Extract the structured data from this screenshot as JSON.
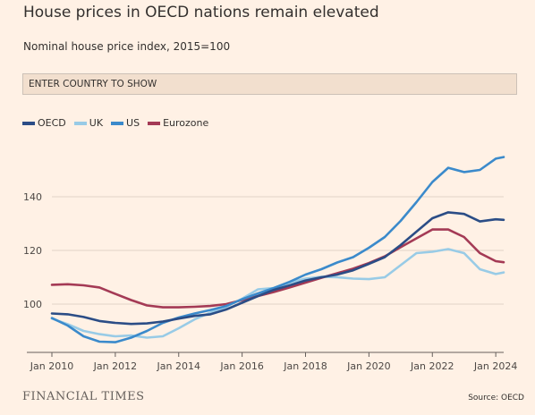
{
  "header": {
    "title": "House prices in OECD nations remain elevated",
    "subtitle": "Nominal house price index, 2015=100"
  },
  "search": {
    "placeholder": "ENTER COUNTRY TO SHOW"
  },
  "footer": {
    "logo": "FINANCIAL TIMES",
    "source": "Source: OECD"
  },
  "chart_data": {
    "type": "line",
    "title": "House prices in OECD nations remain elevated",
    "subtitle": "Nominal house price index, 2015=100",
    "xlabel": "",
    "ylabel": "",
    "x_range": [
      "2010-01",
      "2024-04"
    ],
    "ylim": [
      82,
      160
    ],
    "y_ticks": [
      100,
      120,
      140
    ],
    "x_ticks": [
      "Jan 2010",
      "Jan 2012",
      "Jan 2014",
      "Jan 2016",
      "Jan 2018",
      "Jan 2020",
      "Jan 2022",
      "Jan 2024"
    ],
    "grid": "horizontal",
    "legend_position": "top-left",
    "series": [
      {
        "name": "OECD",
        "color": "#2b4d86",
        "points": [
          [
            "2010-01",
            96.5
          ],
          [
            "2010-07",
            96.2
          ],
          [
            "2011-01",
            95.2
          ],
          [
            "2011-07",
            93.7
          ],
          [
            "2012-01",
            93.0
          ],
          [
            "2012-07",
            92.6
          ],
          [
            "2013-01",
            92.8
          ],
          [
            "2013-07",
            93.5
          ],
          [
            "2014-01",
            94.6
          ],
          [
            "2014-07",
            95.6
          ],
          [
            "2015-01",
            96.2
          ],
          [
            "2015-07",
            98.0
          ],
          [
            "2016-01",
            100.5
          ],
          [
            "2016-07",
            103.0
          ],
          [
            "2017-01",
            105.3
          ],
          [
            "2017-07",
            107.0
          ],
          [
            "2018-01",
            108.8
          ],
          [
            "2018-07",
            110.0
          ],
          [
            "2019-01",
            111.0
          ],
          [
            "2019-07",
            112.6
          ],
          [
            "2020-01",
            115.0
          ],
          [
            "2020-07",
            117.5
          ],
          [
            "2021-01",
            122.0
          ],
          [
            "2021-07",
            127.0
          ],
          [
            "2022-01",
            132.0
          ],
          [
            "2022-07",
            134.2
          ],
          [
            "2023-01",
            133.6
          ],
          [
            "2023-07",
            130.8
          ],
          [
            "2024-01",
            131.6
          ],
          [
            "2024-04",
            131.4
          ]
        ]
      },
      {
        "name": "UK",
        "color": "#98cbe6",
        "points": [
          [
            "2010-01",
            94.6
          ],
          [
            "2010-07",
            92.5
          ],
          [
            "2011-01",
            90.0
          ],
          [
            "2011-07",
            88.8
          ],
          [
            "2012-01",
            88.0
          ],
          [
            "2012-07",
            88.3
          ],
          [
            "2013-01",
            87.5
          ],
          [
            "2013-07",
            88.0
          ],
          [
            "2014-01",
            91.0
          ],
          [
            "2014-07",
            94.3
          ],
          [
            "2015-01",
            96.8
          ],
          [
            "2015-07",
            99.0
          ],
          [
            "2016-01",
            102.0
          ],
          [
            "2016-07",
            105.5
          ],
          [
            "2017-01",
            106.0
          ],
          [
            "2017-07",
            108.0
          ],
          [
            "2018-01",
            109.5
          ],
          [
            "2018-07",
            110.2
          ],
          [
            "2019-01",
            110.0
          ],
          [
            "2019-07",
            109.5
          ],
          [
            "2020-01",
            109.3
          ],
          [
            "2020-07",
            110.0
          ],
          [
            "2021-01",
            114.5
          ],
          [
            "2021-07",
            119.0
          ],
          [
            "2022-01",
            119.5
          ],
          [
            "2022-07",
            120.5
          ],
          [
            "2023-01",
            119.0
          ],
          [
            "2023-07",
            113.0
          ],
          [
            "2024-01",
            111.2
          ],
          [
            "2024-04",
            111.8
          ]
        ]
      },
      {
        "name": "US",
        "color": "#3b8acb",
        "points": [
          [
            "2010-01",
            94.8
          ],
          [
            "2010-07",
            92.0
          ],
          [
            "2011-01",
            88.0
          ],
          [
            "2011-07",
            86.0
          ],
          [
            "2012-01",
            85.8
          ],
          [
            "2012-07",
            87.5
          ],
          [
            "2013-01",
            90.0
          ],
          [
            "2013-07",
            93.0
          ],
          [
            "2014-01",
            95.0
          ],
          [
            "2014-07",
            96.5
          ],
          [
            "2015-01",
            97.8
          ],
          [
            "2015-07",
            99.3
          ],
          [
            "2016-01",
            101.8
          ],
          [
            "2016-07",
            104.0
          ],
          [
            "2017-01",
            106.0
          ],
          [
            "2017-07",
            108.3
          ],
          [
            "2018-01",
            111.0
          ],
          [
            "2018-07",
            113.0
          ],
          [
            "2019-01",
            115.5
          ],
          [
            "2019-07",
            117.5
          ],
          [
            "2020-01",
            121.0
          ],
          [
            "2020-07",
            125.0
          ],
          [
            "2021-01",
            131.0
          ],
          [
            "2021-07",
            138.0
          ],
          [
            "2022-01",
            145.5
          ],
          [
            "2022-07",
            150.8
          ],
          [
            "2023-01",
            149.2
          ],
          [
            "2023-07",
            150.0
          ],
          [
            "2024-01",
            154.2
          ],
          [
            "2024-04",
            154.8
          ]
        ]
      },
      {
        "name": "Eurozone",
        "color": "#a43a55",
        "points": [
          [
            "2010-01",
            107.2
          ],
          [
            "2010-07",
            107.4
          ],
          [
            "2011-01",
            107.0
          ],
          [
            "2011-07",
            106.2
          ],
          [
            "2012-01",
            103.8
          ],
          [
            "2012-07",
            101.5
          ],
          [
            "2013-01",
            99.5
          ],
          [
            "2013-07",
            98.8
          ],
          [
            "2014-01",
            98.8
          ],
          [
            "2014-07",
            99.0
          ],
          [
            "2015-01",
            99.3
          ],
          [
            "2015-07",
            100.0
          ],
          [
            "2016-01",
            101.5
          ],
          [
            "2016-07",
            103.0
          ],
          [
            "2017-01",
            104.5
          ],
          [
            "2017-07",
            106.2
          ],
          [
            "2018-01",
            108.0
          ],
          [
            "2018-07",
            109.8
          ],
          [
            "2019-01",
            111.5
          ],
          [
            "2019-07",
            113.2
          ],
          [
            "2020-01",
            115.3
          ],
          [
            "2020-07",
            117.8
          ],
          [
            "2021-01",
            121.2
          ],
          [
            "2021-07",
            124.5
          ],
          [
            "2022-01",
            127.8
          ],
          [
            "2022-07",
            127.8
          ],
          [
            "2023-01",
            125.0
          ],
          [
            "2023-07",
            119.0
          ],
          [
            "2024-01",
            116.0
          ],
          [
            "2024-04",
            115.6
          ]
        ]
      }
    ]
  }
}
